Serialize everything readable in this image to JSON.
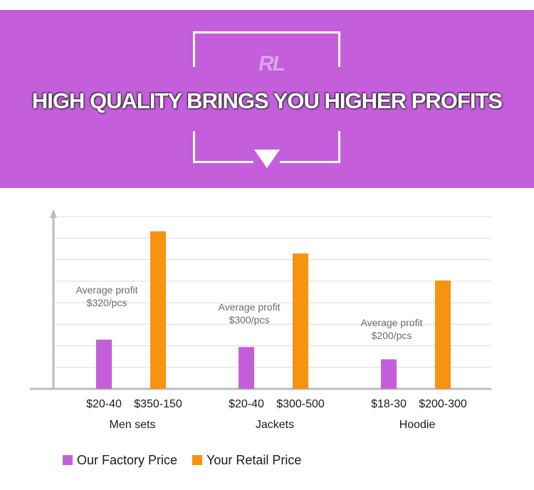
{
  "banner": {
    "logo_text": "RL",
    "headline": "HIGH QUALITY BRINGS YOU HIGHER PROFITS",
    "background": "#c45edb"
  },
  "chart_data": {
    "type": "bar",
    "groups": [
      "Men sets",
      "Jackets",
      "Hoodie"
    ],
    "series": [
      {
        "name": "Our Factory Price",
        "color": "#c55ed9",
        "labels": [
          "$20-40",
          "$20-40",
          "$18-30"
        ],
        "values": [
          2,
          1.7,
          1.2
        ]
      },
      {
        "name": "Your Retail Price",
        "color": "#f7930f",
        "labels": [
          "$350-150",
          "$300-500",
          "$200-300"
        ],
        "values": [
          6.4,
          5.5,
          4.4
        ]
      }
    ],
    "annotations": [
      {
        "group": "Men sets",
        "lines": [
          "Average profit",
          "$320/pcs"
        ]
      },
      {
        "group": "Jackets",
        "lines": [
          "Average profit",
          "$300/pcs"
        ]
      },
      {
        "group": "Hoodie",
        "lines": [
          "Average profit",
          "$200/pcs"
        ]
      }
    ],
    "ylim": [
      0,
      7
    ],
    "grid": true,
    "legend_position": "bottom-left"
  }
}
